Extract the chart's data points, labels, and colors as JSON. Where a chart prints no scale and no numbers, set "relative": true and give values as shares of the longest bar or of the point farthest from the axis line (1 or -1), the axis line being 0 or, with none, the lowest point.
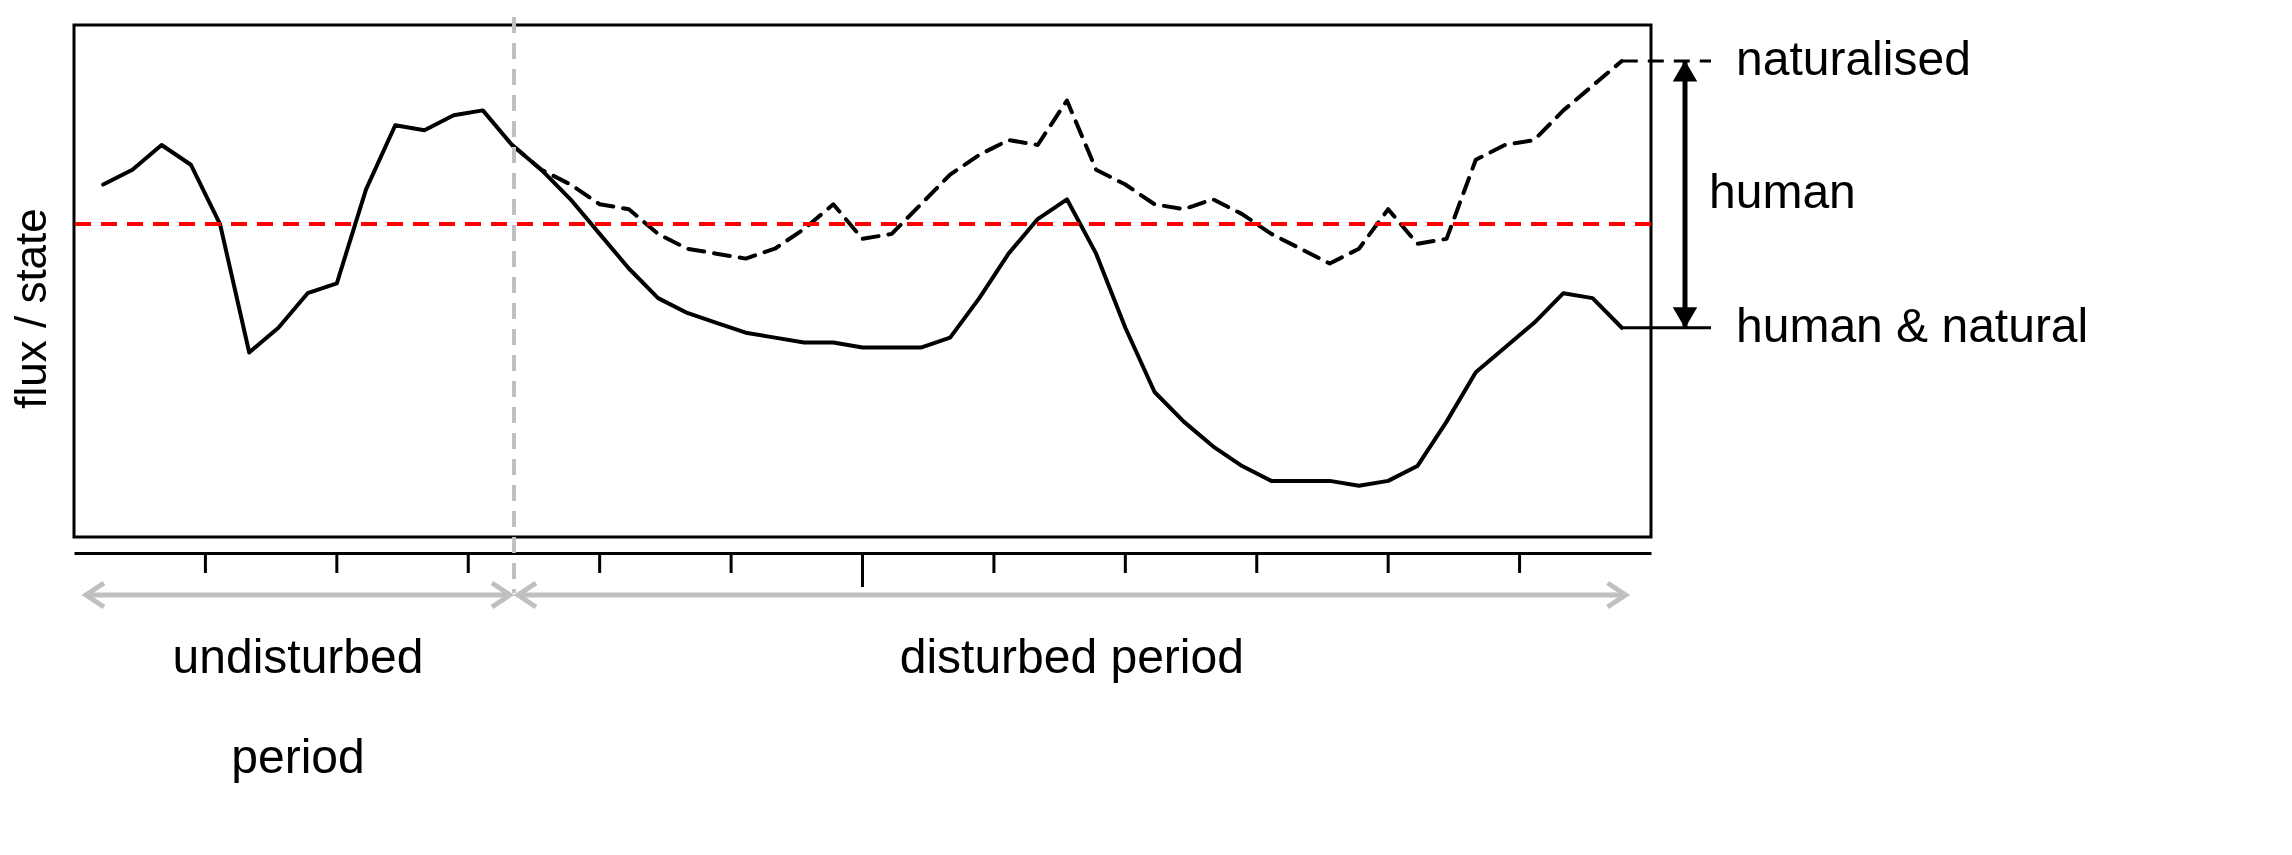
{
  "chart_data": {
    "type": "line",
    "ylabel": "flux / state",
    "relative": true,
    "legend": "right",
    "categories": [
      null,
      null,
      null,
      null,
      null,
      null,
      null,
      null,
      null,
      null,
      null,
      null,
      null,
      null,
      null,
      null,
      null,
      null,
      null,
      null,
      null,
      null,
      null,
      null,
      null,
      null,
      null,
      null,
      null,
      null,
      null,
      null,
      null,
      null,
      null,
      null,
      null,
      null,
      null,
      null,
      null,
      null,
      null,
      null,
      null,
      null,
      null,
      null,
      null,
      null,
      null,
      null,
      null
    ],
    "series": [
      {
        "name": "naturalised",
        "color": "#000000",
        "line_style": "dashed",
        "values": [
          null,
          null,
          null,
          null,
          null,
          null,
          null,
          null,
          null,
          null,
          null,
          null,
          null,
          null,
          0.83,
          0.78,
          0.75,
          0.71,
          0.7,
          0.65,
          0.62,
          0.61,
          0.6,
          0.62,
          0.66,
          0.71,
          0.64,
          0.65,
          0.71,
          0.77,
          0.81,
          0.84,
          0.83,
          0.92,
          0.78,
          0.75,
          0.71,
          0.7,
          0.72,
          0.69,
          0.65,
          0.62,
          0.59,
          0.62,
          0.7,
          0.63,
          0.64,
          0.8,
          0.83,
          0.84,
          0.9,
          0.95,
          1.0
        ]
      },
      {
        "name": "human & natural",
        "color": "#000000",
        "line_style": "solid",
        "values": [
          0.75,
          0.78,
          0.83,
          0.79,
          0.67,
          0.41,
          0.46,
          0.53,
          0.55,
          0.74,
          0.87,
          0.86,
          0.89,
          0.9,
          0.83,
          0.78,
          0.72,
          0.65,
          0.58,
          0.52,
          0.49,
          0.47,
          0.45,
          0.44,
          0.43,
          0.43,
          0.42,
          0.42,
          0.42,
          0.44,
          0.52,
          0.61,
          0.68,
          0.72,
          0.61,
          0.46,
          0.33,
          0.27,
          0.22,
          0.18,
          0.15,
          0.15,
          0.15,
          0.14,
          0.15,
          0.18,
          0.27,
          0.37,
          0.42,
          0.47,
          0.53,
          0.52,
          0.46
        ]
      }
    ],
    "ref_lines": [
      {
        "axis": "y",
        "value": 0.67,
        "color": "#ff0000",
        "line_style": "dashed"
      }
    ],
    "annotations": [
      "undisturbed period",
      "disturbed period",
      "human"
    ]
  }
}
